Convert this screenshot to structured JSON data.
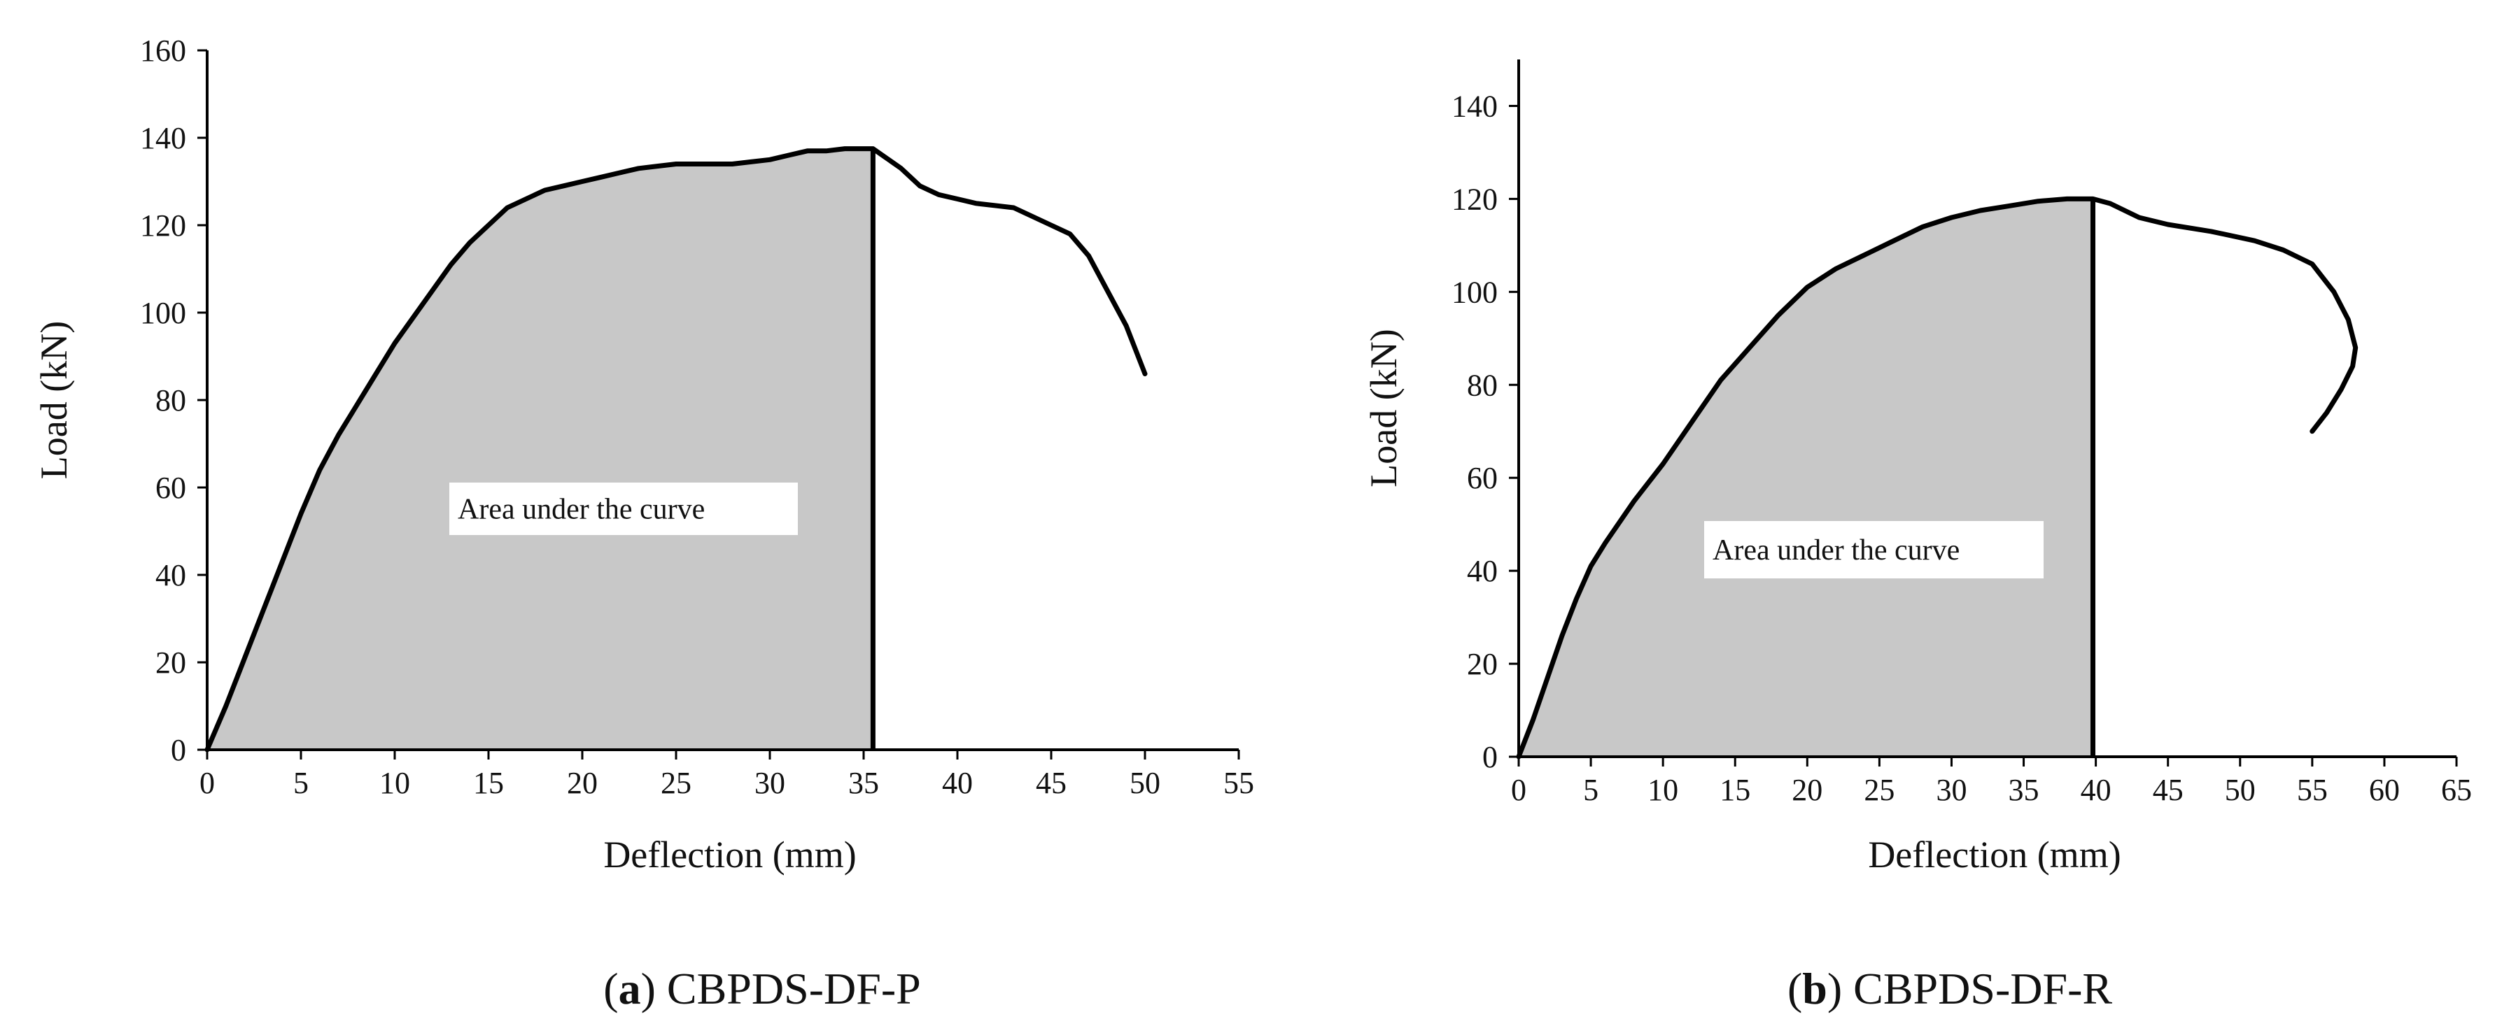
{
  "colors": {
    "curve": "#000000",
    "area_fill": "#c8c8c8",
    "axis": "#000000",
    "label_box": "#ffffff"
  },
  "charts": [
    {
      "caption": {
        "letter": "a",
        "open": "(",
        "close": ")",
        "text": " CBPDS-DF-P"
      },
      "chart_data": {
        "type": "line",
        "title": "",
        "xlabel": "Deflection (mm)",
        "ylabel": "Load (kN)",
        "xlim": [
          0,
          55
        ],
        "ylim": [
          0,
          160
        ],
        "xticks": [
          "0",
          "5",
          "10",
          "15",
          "20",
          "25",
          "30",
          "35",
          "40",
          "45",
          "50",
          "55"
        ],
        "yticks": [
          "0",
          "20",
          "40",
          "60",
          "80",
          "100",
          "120",
          "140",
          "160"
        ],
        "annotation": "Area under the curve",
        "annotation_at": [
          16,
          56
        ],
        "area_until_x": 35.5,
        "series": [
          {
            "name": "CBPDS-DF-P",
            "x": [
              0,
              1,
              2,
              3,
              4,
              5,
              6,
              7,
              8,
              9,
              10,
              11,
              12,
              13,
              14,
              15,
              16,
              17,
              18,
              19,
              20,
              21,
              22,
              23,
              24,
              25,
              26,
              27,
              28,
              29,
              30,
              31,
              32,
              33,
              34,
              35,
              35.5,
              36,
              37,
              38,
              39,
              40,
              41,
              42,
              43,
              44,
              45,
              46,
              47,
              48,
              49,
              50
            ],
            "y": [
              0,
              10,
              21,
              32,
              43,
              54,
              64,
              72,
              79,
              86,
              93,
              99,
              105,
              111,
              116,
              120,
              124,
              126,
              128,
              129,
              130,
              131,
              132,
              133,
              133.5,
              134,
              134,
              134,
              134,
              134.5,
              135,
              136,
              137,
              137,
              137.5,
              137.5,
              137.5,
              136,
              133,
              129,
              127,
              126,
              125,
              124.5,
              124,
              122,
              120,
              118,
              113,
              105,
              97,
              86
            ]
          }
        ]
      }
    },
    {
      "caption": {
        "letter": "b",
        "open": "(",
        "close": ")",
        "text": " CBPDS-DF-R"
      },
      "chart_data": {
        "type": "line",
        "title": "",
        "xlabel": "Deflection (mm)",
        "ylabel": "Load (kN)",
        "xlim": [
          0,
          65
        ],
        "ylim": [
          0,
          150
        ],
        "xticks": [
          "0",
          "5",
          "10",
          "15",
          "20",
          "25",
          "30",
          "35",
          "40",
          "45",
          "50",
          "55",
          "60",
          "65"
        ],
        "yticks": [
          "0",
          "20",
          "40",
          "60",
          "80",
          "100",
          "120",
          "140"
        ],
        "annotation": "Area under the curve",
        "annotation_at": [
          13,
          44
        ],
        "area_until_x": 39.8,
        "series": [
          {
            "name": "CBPDS-DF-R",
            "x": [
              0,
              1,
              2,
              3,
              4,
              5,
              6,
              8,
              10,
              12,
              14,
              16,
              18,
              20,
              22,
              24,
              26,
              28,
              30,
              32,
              34,
              36,
              38,
              39.8,
              41,
              43,
              45,
              48,
              51,
              53,
              55,
              56.5,
              57.5,
              58,
              57.8,
              57,
              56,
              55
            ],
            "y": [
              0,
              8,
              17,
              26,
              34,
              41,
              46,
              55,
              63,
              72,
              81,
              88,
              95,
              101,
              105,
              108,
              111,
              114,
              116,
              117.5,
              118.5,
              119.5,
              120,
              120,
              119,
              116,
              114.5,
              113,
              111,
              109,
              106,
              100,
              94,
              88,
              84,
              79,
              74,
              70
            ]
          }
        ]
      }
    }
  ]
}
